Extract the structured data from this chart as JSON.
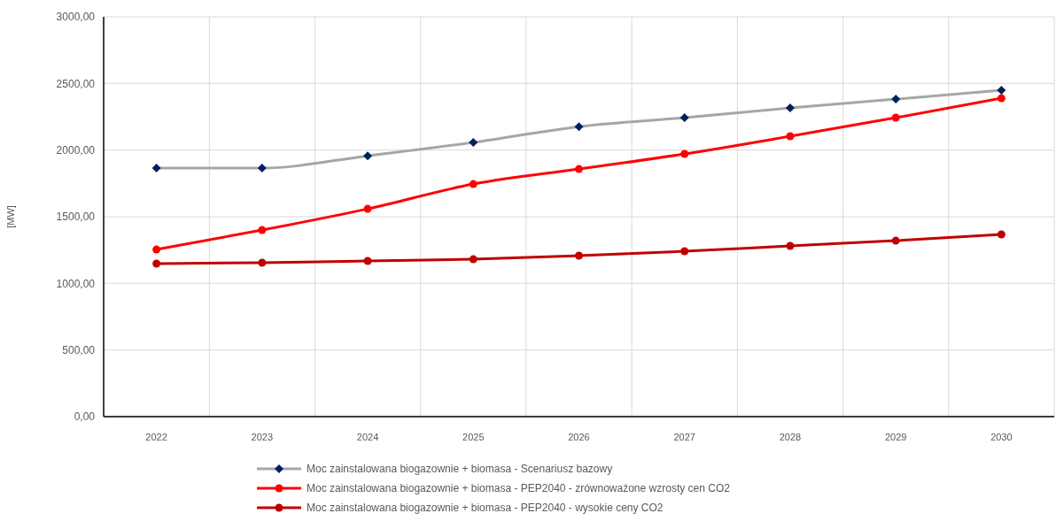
{
  "chart_data": {
    "type": "line",
    "ylabel": "[MW]",
    "categories": [
      "2022",
      "2023",
      "2024",
      "2025",
      "2026",
      "2027",
      "2028",
      "2029",
      "2030"
    ],
    "ylim": [
      0,
      3000
    ],
    "yticks": [
      {
        "value": 0,
        "label": "0,00"
      },
      {
        "value": 500,
        "label": "500,00"
      },
      {
        "value": 1000,
        "label": "1000,00"
      },
      {
        "value": 1500,
        "label": "1500,00"
      },
      {
        "value": 2000,
        "label": "2000,00"
      },
      {
        "value": 2500,
        "label": "2500,00"
      },
      {
        "value": 3000,
        "label": "3000,00"
      }
    ],
    "grid": true,
    "legend": "bottom",
    "line_style": "solid",
    "series": [
      {
        "name": "Moc zainstalowana biogazownie + biomasa - Scenariusz bazowy",
        "color": "#a6a6a6",
        "colors": [
          "#002060",
          "#002060",
          "#002060",
          "#002060",
          "#002060",
          "#002060",
          "#002060",
          "#002060",
          "#002060"
        ],
        "marker": "diamond",
        "values": [
          1865,
          1865,
          1957,
          2057,
          2176,
          2243,
          2316,
          2382,
          2449
        ]
      },
      {
        "name": "Moc zainstalowana biogazownie + biomasa - PEP2040 - zrównoważone wzrosty cen CO2",
        "color": "#ff0000",
        "marker": "circle",
        "values": [
          1254,
          1400,
          1559,
          1745,
          1858,
          1971,
          2104,
          2243,
          2389
        ]
      },
      {
        "name": "Moc zainstalowana biogazownie + biomasa - PEP2040 - wysokie ceny CO2",
        "color": "#c00000",
        "marker": "circle",
        "values": [
          1148,
          1155,
          1168,
          1181,
          1208,
          1241,
          1281,
          1320,
          1367
        ]
      }
    ]
  }
}
